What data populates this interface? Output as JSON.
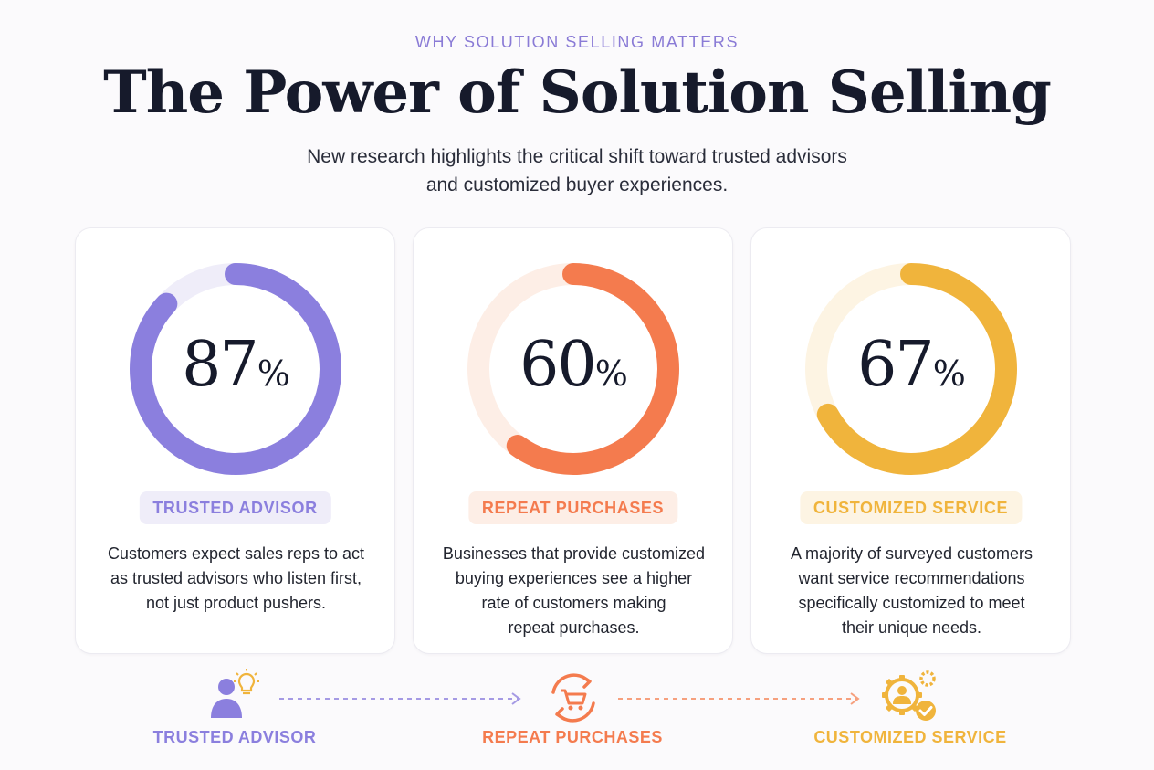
{
  "header": {
    "eyebrow": "WHY SOLUTION SELLING MATTERS",
    "title": "The Power of Solution Selling",
    "subtitle_lines": [
      "New research highlights the critical shift toward trusted advisors",
      "and customized buyer experiences."
    ]
  },
  "chart_data": {
    "type": "donut",
    "series": [
      {
        "name": "TRUSTED ADVISOR",
        "value": 87,
        "unit": "%",
        "color": "#8b7fde",
        "track_color": "#efedf9",
        "description_lines": [
          "Customers expect sales reps to act",
          "as trusted advisors who listen first,",
          "not just product pushers."
        ]
      },
      {
        "name": "REPEAT PURCHASES",
        "value": 60,
        "unit": "%",
        "color": "#f47b4e",
        "track_color": "#fdeee6",
        "description_lines": [
          "Businesses that provide customized",
          "buying experiences see a higher",
          "rate of customers making",
          "repeat purchases."
        ]
      },
      {
        "name": "CUSTOMIZED SERVICE",
        "value": 67,
        "unit": "%",
        "color": "#f0b43c",
        "track_color": "#fdf4e3",
        "description_lines": [
          "A majority of surveyed customers",
          "want service recommendations",
          "specifically customized to meet",
          "their unique needs."
        ]
      }
    ]
  },
  "flow": {
    "steps": [
      {
        "label": "TRUSTED ADVISOR",
        "icon": "advisor-lightbulb-icon",
        "color": "#8b7fde"
      },
      {
        "label": "REPEAT PURCHASES",
        "icon": "cart-cycle-icon",
        "color": "#f47b4e"
      },
      {
        "label": "CUSTOMIZED SERVICE",
        "icon": "gear-user-check-icon",
        "color": "#f0b43c"
      }
    ]
  },
  "colors": {
    "accent_purple": "#8b7fde",
    "accent_orange": "#f47b4e",
    "accent_yellow": "#f0b43c",
    "title_ink": "#161a2b"
  }
}
